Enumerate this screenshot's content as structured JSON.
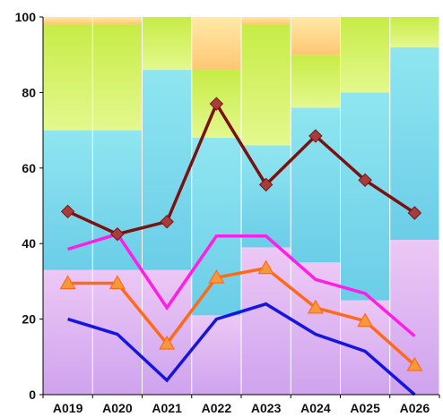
{
  "chart_data": {
    "type": "bar",
    "subtype": "stacked-bar-with-lines",
    "title": "",
    "xlabel": "",
    "ylabel": "",
    "ylim": [
      0,
      100
    ],
    "yticks": [
      0,
      20,
      40,
      60,
      80,
      100
    ],
    "grid": false,
    "legend": "none",
    "categories": [
      "A019",
      "A020",
      "A021",
      "A022",
      "A023",
      "A024",
      "A025",
      "A026"
    ],
    "bar_series": [
      {
        "values": [
          33,
          33,
          33,
          21,
          39,
          35,
          25,
          41
        ],
        "color_top": "#ecc8f5",
        "color_bottom": "#cfa3ee"
      },
      {
        "values": [
          37,
          37,
          53,
          47,
          27,
          41,
          55,
          51
        ],
        "color_top": "#8fe6f0",
        "color_bottom": "#6bcde8"
      },
      {
        "values": [
          28,
          28,
          14,
          18,
          32,
          14,
          20,
          8
        ],
        "color_top": "#c7ec46",
        "color_bottom": "#e4f88e"
      },
      {
        "values": [
          2,
          2,
          0,
          14,
          2,
          10,
          0,
          0
        ],
        "color_top": "#ffe9a6",
        "color_bottom": "#ffc774"
      }
    ],
    "line_series": [
      {
        "values": [
          48.5,
          42.5,
          45.8,
          77.0,
          55.6,
          68.5,
          56.8,
          48.1
        ],
        "color": "#7a1212",
        "marker": "diamond",
        "marker_color": "#a83c3c"
      },
      {
        "values": [
          38.5,
          42.5,
          23.0,
          42.0,
          42.0,
          30.5,
          26.8,
          15.5
        ],
        "color": "#ff1ee6",
        "marker": "none"
      },
      {
        "values": [
          29.5,
          29.5,
          13.5,
          31.0,
          33.5,
          23.0,
          19.5,
          7.8
        ],
        "color": "#ff6a1a",
        "marker": "triangle",
        "marker_color": "#f7993a"
      },
      {
        "values": [
          20.0,
          16.0,
          3.8,
          20.0,
          24.0,
          16.0,
          11.5,
          0.0
        ],
        "color": "#1515e0",
        "marker": "none"
      }
    ]
  }
}
